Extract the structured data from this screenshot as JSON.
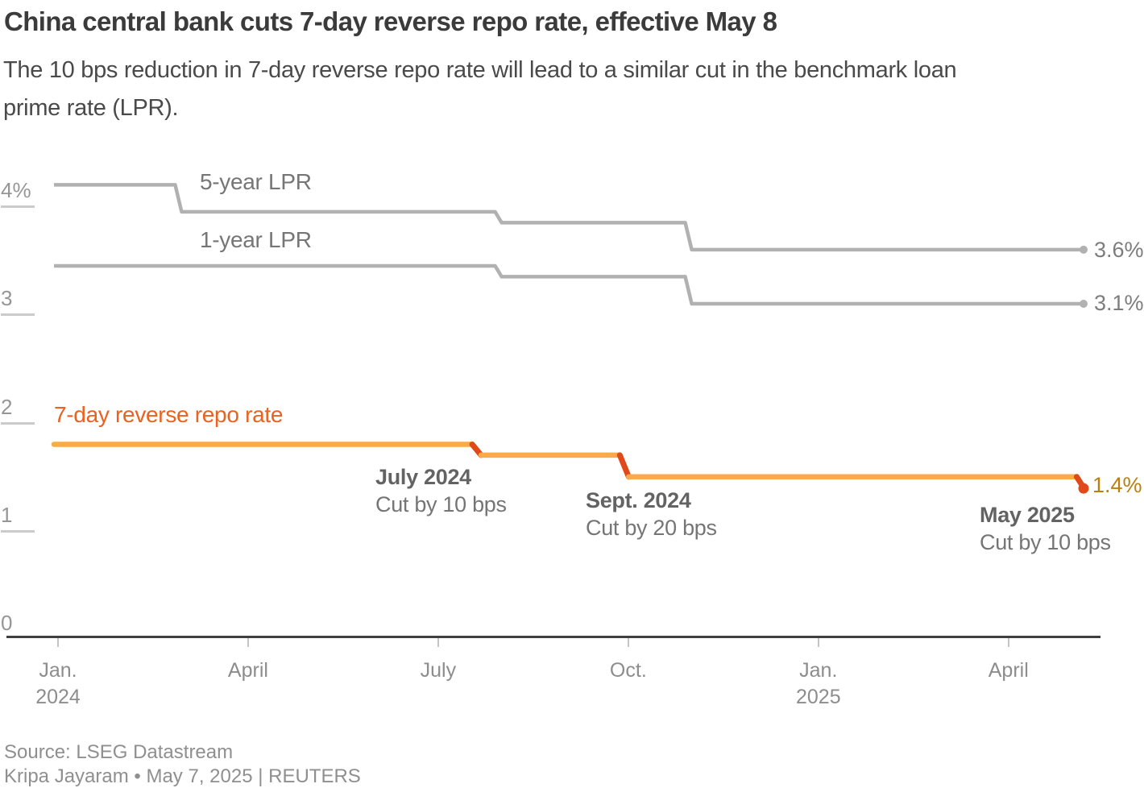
{
  "header": {
    "title": "China central bank cuts 7-day reverse repo rate, effective May 8",
    "subtitle": "The 10 bps reduction in 7-day reverse repo rate will lead to a similar cut in the benchmark loan\nprime rate (LPR)."
  },
  "chart_data": {
    "type": "line",
    "title": "China central bank cuts 7-day reverse repo rate, effective May 8",
    "x_axis": {
      "unit": "months since Jan 2024",
      "ticks": [
        {
          "label": "Jan.",
          "sublabel": "2024",
          "month": 0
        },
        {
          "label": "April",
          "month": 3
        },
        {
          "label": "July",
          "month": 6
        },
        {
          "label": "Oct.",
          "month": 9
        },
        {
          "label": "Jan.",
          "sublabel": "2025",
          "month": 12
        },
        {
          "label": "April",
          "month": 15
        }
      ]
    },
    "y_axis": {
      "unit": "percent",
      "range": [
        0,
        4.6
      ],
      "ticks": [
        {
          "label": "4%",
          "value": 4,
          "line": true
        },
        {
          "label": "3",
          "value": 3,
          "line": true
        },
        {
          "label": "2",
          "value": 2,
          "line": true
        },
        {
          "label": "1",
          "value": 1,
          "line": true
        },
        {
          "label": "0",
          "value": 0,
          "line": false
        }
      ]
    },
    "series": [
      {
        "name": "5-year LPR",
        "style": "gray",
        "end_label": "3.6%",
        "steps": [
          {
            "month": -0.05,
            "value": 4.2
          },
          {
            "month": 1.9,
            "value": 3.95
          },
          {
            "month": 6.95,
            "value": 3.85
          },
          {
            "month": 9.95,
            "value": 3.6
          }
        ],
        "end_month": 16.19
      },
      {
        "name": "1-year LPR",
        "style": "gray",
        "end_label": "3.1%",
        "steps": [
          {
            "month": -0.05,
            "value": 3.45
          },
          {
            "month": 6.95,
            "value": 3.35
          },
          {
            "month": 9.95,
            "value": 3.1
          }
        ],
        "end_month": 16.19
      },
      {
        "name": "7-day reverse repo rate",
        "style": "orange",
        "end_label": "1.4%",
        "steps": [
          {
            "month": -0.05,
            "value": 1.8
          },
          {
            "month": 6.6,
            "value": 1.7
          },
          {
            "month": 8.93,
            "value": 1.5
          },
          {
            "month": 16.14,
            "value": 1.4
          }
        ],
        "end_month": 16.19
      }
    ],
    "annotations": [
      {
        "title": "July 2024",
        "text": "Cut by 10 bps"
      },
      {
        "title": "Sept. 2024",
        "text": "Cut by 20 bps"
      },
      {
        "title": "May 2025",
        "text": "Cut by 10 bps"
      }
    ],
    "legend_position": "inline-labels",
    "grid": "left-stub-ticks-only"
  },
  "colors": {
    "gray_line": "#b1b1b1",
    "orange_line": "#fbaa47",
    "cut_accent": "#e2491a",
    "repo_label": "#e9621f",
    "repo_end_label": "#b9800f",
    "axis_line": "#3f3f3f"
  },
  "footer": {
    "source": "Source: LSEG Datastream",
    "byline": "Kripa Jayaram • May 7, 2025 | REUTERS"
  }
}
